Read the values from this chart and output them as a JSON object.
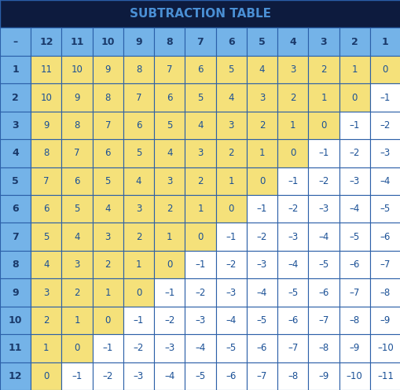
{
  "title": "SUBTRACTION TABLE",
  "title_color": "#4a8fd4",
  "title_bg": "#0d1b3e",
  "header_bg": "#74b3e8",
  "header_text_color": "#1a3a6b",
  "yellow_bg": "#f5e17a",
  "white_bg": "#ffffff",
  "cell_text_color": "#1a5096",
  "border_color": "#2b5fa8",
  "row_labels": [
    1,
    2,
    3,
    4,
    5,
    6,
    7,
    8,
    9,
    10,
    11,
    12
  ],
  "col_labels": [
    12,
    11,
    10,
    9,
    8,
    7,
    6,
    5,
    4,
    3,
    2,
    1
  ],
  "figsize": [
    5.1,
    4.96
  ],
  "dpi": 100
}
